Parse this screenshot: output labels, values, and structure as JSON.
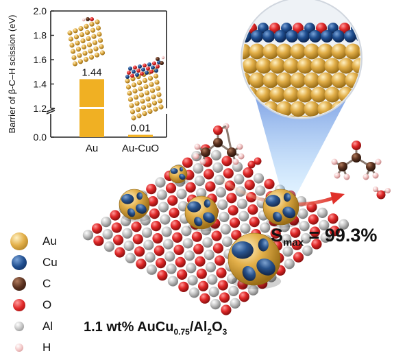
{
  "chart_data": {
    "type": "bar",
    "categories": [
      "Au",
      "Au-CuO"
    ],
    "values": [
      1.44,
      0.01
    ],
    "value_labels": [
      "1.44",
      "0.01"
    ],
    "ylabel": "Barrier of β-C–H scission (eV)",
    "ylim": [
      0.0,
      2.0
    ],
    "y_broken": true,
    "y_ticks": [
      0.0,
      1.2,
      1.4,
      1.6,
      1.8,
      2.0
    ],
    "y_tick_labels": [
      "0.0",
      "1.2",
      "1.4",
      "1.6",
      "1.8",
      "2.0"
    ],
    "bar_color": "#f0b023"
  },
  "annotations": {
    "selectivity_prefix": "S",
    "selectivity_sub": "max",
    "selectivity_value": " = 99.3%",
    "catalyst_formula": {
      "part1": "1.1 wt% AuCu",
      "sub1": "0.75",
      "part2": "/Al",
      "sub2": "2",
      "part3": "O",
      "sub3": "3"
    }
  },
  "legend": [
    {
      "label": "Au",
      "color": "#e8b84a",
      "icon": "gold-sphere"
    },
    {
      "label": "Cu",
      "color": "#1f4e8f",
      "icon": "blue-sphere"
    },
    {
      "label": "C",
      "color": "#5b3220",
      "icon": "brown-sphere"
    },
    {
      "label": "O",
      "color": "#e02828",
      "icon": "red-sphere"
    },
    {
      "label": "Al",
      "color": "#b8b8b8",
      "icon": "gray-sphere"
    },
    {
      "label": "H",
      "color": "#f0b8b8",
      "icon": "pink-sphere"
    }
  ]
}
